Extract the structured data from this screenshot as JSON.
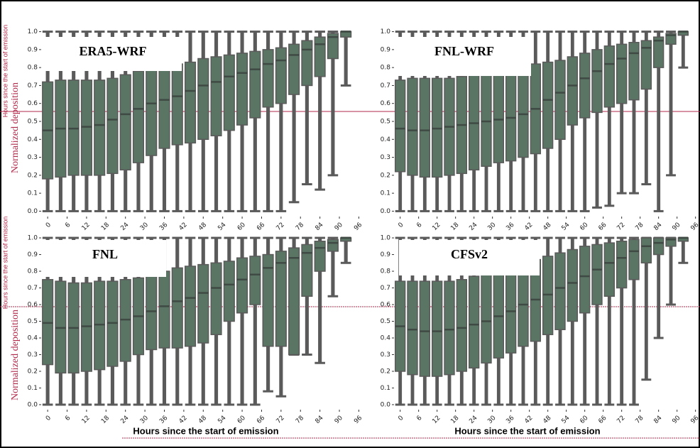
{
  "x_label": "Hours since the start of emission",
  "y_label": "Normalized deposition",
  "chart_data": [
    {
      "type": "box",
      "title": "ERA5-WRF",
      "color": "#5b7565",
      "whisker_color": "#5a5a5a",
      "x": [
        0,
        4,
        8,
        12,
        16,
        20,
        24,
        28,
        32,
        36,
        40,
        44,
        48,
        52,
        56,
        60,
        64,
        68,
        72,
        76,
        80,
        84,
        88,
        92
      ],
      "whisker_high": [
        1,
        1,
        1,
        1,
        1,
        1,
        1,
        1,
        1,
        1,
        1,
        1,
        1,
        1,
        1,
        1,
        1,
        1,
        1,
        1,
        1,
        1,
        1,
        1
      ],
      "q3": [
        0.72,
        0.73,
        0.73,
        0.73,
        0.73,
        0.74,
        0.76,
        0.78,
        0.8,
        0.81,
        0.82,
        0.83,
        0.85,
        0.86,
        0.87,
        0.88,
        0.89,
        0.9,
        0.91,
        0.93,
        0.95,
        0.97,
        0.99,
        1.0
      ],
      "median": [
        0.45,
        0.46,
        0.46,
        0.47,
        0.48,
        0.51,
        0.54,
        0.57,
        0.6,
        0.62,
        0.64,
        0.67,
        0.7,
        0.72,
        0.75,
        0.77,
        0.79,
        0.82,
        0.84,
        0.87,
        0.9,
        0.93,
        0.97,
        1.0
      ],
      "q1": [
        0.18,
        0.19,
        0.2,
        0.2,
        0.2,
        0.21,
        0.23,
        0.27,
        0.31,
        0.35,
        0.37,
        0.38,
        0.4,
        0.42,
        0.45,
        0.48,
        0.52,
        0.58,
        0.6,
        0.65,
        0.7,
        0.75,
        0.85,
        0.97
      ],
      "whisker_low": [
        0,
        0,
        0,
        0,
        0,
        0,
        0,
        0,
        0,
        0,
        0,
        0,
        0,
        0,
        0,
        0,
        0,
        0,
        0,
        0.05,
        0.15,
        0.12,
        0.2,
        0.7
      ],
      "xlim": [
        -2,
        97
      ],
      "ylim": [
        -0.03,
        1.03
      ],
      "xticks": [
        0,
        6,
        12,
        18,
        24,
        30,
        36,
        42,
        48,
        54,
        60,
        66,
        72,
        78,
        84,
        90,
        96
      ],
      "yticks": [
        {
          "value": 0,
          "label": "0.0"
        },
        0.1,
        0.2,
        0.3,
        0.4,
        0.5,
        0.6,
        0.7,
        0.8,
        0.9,
        {
          "value": 1,
          "label": "1.0"
        }
      ]
    },
    {
      "type": "box",
      "title": "FNL-WRF",
      "color": "#5b7565",
      "whisker_color": "#5a5a5a",
      "x": [
        0,
        4,
        8,
        12,
        16,
        20,
        24,
        28,
        32,
        36,
        40,
        44,
        48,
        52,
        56,
        60,
        64,
        68,
        72,
        76,
        80,
        84,
        88,
        92
      ],
      "whisker_high": [
        1,
        1,
        1,
        1,
        1,
        1,
        1,
        1,
        1,
        1,
        1,
        1,
        1,
        1,
        1,
        1,
        1,
        1,
        1,
        1,
        1,
        1,
        1,
        1
      ],
      "q3": [
        0.73,
        0.74,
        0.74,
        0.74,
        0.74,
        0.75,
        0.76,
        0.78,
        0.79,
        0.8,
        0.81,
        0.82,
        0.83,
        0.84,
        0.86,
        0.88,
        0.9,
        0.92,
        0.93,
        0.94,
        0.95,
        0.97,
        0.99,
        1.0
      ],
      "median": [
        0.46,
        0.45,
        0.45,
        0.46,
        0.47,
        0.48,
        0.49,
        0.5,
        0.51,
        0.52,
        0.54,
        0.57,
        0.62,
        0.66,
        0.7,
        0.74,
        0.78,
        0.82,
        0.85,
        0.88,
        0.91,
        0.95,
        0.98,
        1.0
      ],
      "q1": [
        0.22,
        0.2,
        0.19,
        0.19,
        0.2,
        0.21,
        0.23,
        0.25,
        0.27,
        0.28,
        0.3,
        0.32,
        0.35,
        0.4,
        0.48,
        0.52,
        0.55,
        0.58,
        0.6,
        0.62,
        0.68,
        0.8,
        0.93,
        0.98
      ],
      "whisker_low": [
        0,
        0,
        0,
        0,
        0,
        0,
        0,
        0,
        0,
        0,
        0,
        0,
        0,
        0,
        0,
        0,
        0.02,
        0.03,
        0.1,
        0.1,
        0.15,
        0,
        0.2,
        0.8
      ],
      "xlim": [
        -2,
        97
      ],
      "ylim": [
        -0.03,
        1.03
      ],
      "xticks": [
        0,
        6,
        12,
        18,
        24,
        30,
        36,
        42,
        48,
        54,
        60,
        66,
        72,
        78,
        84,
        90,
        96
      ],
      "yticks": [
        {
          "value": 0,
          "label": "0.0"
        },
        0.1,
        0.2,
        0.3,
        0.4,
        0.5,
        0.6,
        0.7,
        0.8,
        0.9,
        {
          "value": 1,
          "label": "1.0"
        }
      ]
    },
    {
      "type": "box",
      "title": "FNL",
      "color": "#5b7565",
      "whisker_color": "#5a5a5a",
      "x": [
        0,
        4,
        8,
        12,
        16,
        20,
        24,
        28,
        32,
        36,
        40,
        44,
        48,
        52,
        56,
        60,
        64,
        68,
        72,
        76,
        80,
        84,
        88,
        92
      ],
      "whisker_high": [
        1,
        1,
        1,
        1,
        1,
        1,
        1,
        1,
        1,
        1,
        1,
        1,
        1,
        1,
        1,
        1,
        1,
        1,
        1,
        1,
        1,
        1,
        1,
        1
      ],
      "q3": [
        0.75,
        0.74,
        0.73,
        0.73,
        0.74,
        0.74,
        0.75,
        0.76,
        0.78,
        0.8,
        0.82,
        0.83,
        0.84,
        0.85,
        0.86,
        0.88,
        0.89,
        0.9,
        0.92,
        0.94,
        0.96,
        0.98,
        0.99,
        1.0
      ],
      "median": [
        0.49,
        0.46,
        0.46,
        0.47,
        0.48,
        0.49,
        0.51,
        0.53,
        0.56,
        0.59,
        0.62,
        0.64,
        0.67,
        0.7,
        0.72,
        0.75,
        0.78,
        0.82,
        0.85,
        0.88,
        0.91,
        0.94,
        0.97,
        1.0
      ],
      "q1": [
        0.24,
        0.19,
        0.19,
        0.2,
        0.21,
        0.23,
        0.26,
        0.3,
        0.33,
        0.34,
        0.34,
        0.35,
        0.37,
        0.42,
        0.5,
        0.55,
        0.6,
        0.35,
        0.35,
        0.3,
        0.65,
        0.8,
        0.92,
        0.98
      ],
      "whisker_low": [
        0,
        0,
        0,
        0,
        0,
        0,
        0,
        0,
        0,
        0,
        0,
        0,
        0,
        0,
        0,
        0,
        0,
        0.08,
        0.05,
        0.3,
        0.3,
        0.25,
        0.65,
        0.85
      ],
      "xlim": [
        -2,
        97
      ],
      "ylim": [
        -0.03,
        1.03
      ],
      "xticks": [
        0,
        6,
        12,
        18,
        24,
        30,
        36,
        42,
        48,
        54,
        60,
        66,
        72,
        78,
        84,
        90,
        96
      ],
      "yticks": [
        {
          "value": 0,
          "label": "0.0"
        },
        0.1,
        0.2,
        0.3,
        0.4,
        0.5,
        0.6,
        0.7,
        0.8,
        0.9,
        {
          "value": 1,
          "label": "1.0"
        }
      ]
    },
    {
      "type": "box",
      "title": "CFSv2",
      "color": "#5b7565",
      "whisker_color": "#5a5a5a",
      "x": [
        0,
        4,
        8,
        12,
        16,
        20,
        24,
        28,
        32,
        36,
        40,
        44,
        48,
        52,
        56,
        60,
        64,
        68,
        72,
        76,
        80,
        84,
        88,
        92
      ],
      "whisker_high": [
        1,
        1,
        1,
        1,
        1,
        1,
        1,
        1,
        1,
        1,
        1,
        1,
        1,
        1,
        1,
        1,
        1,
        1,
        1,
        1,
        1,
        1,
        1,
        1
      ],
      "q3": [
        0.74,
        0.74,
        0.74,
        0.74,
        0.74,
        0.75,
        0.77,
        0.79,
        0.81,
        0.83,
        0.85,
        0.87,
        0.89,
        0.91,
        0.93,
        0.95,
        0.96,
        0.97,
        0.98,
        0.99,
        1.0,
        1.0,
        1.0,
        1.0
      ],
      "median": [
        0.47,
        0.45,
        0.44,
        0.44,
        0.45,
        0.46,
        0.48,
        0.5,
        0.53,
        0.56,
        0.6,
        0.63,
        0.66,
        0.7,
        0.73,
        0.77,
        0.81,
        0.85,
        0.88,
        0.92,
        0.95,
        0.97,
        0.99,
        1.0
      ],
      "q1": [
        0.2,
        0.18,
        0.17,
        0.17,
        0.18,
        0.2,
        0.22,
        0.25,
        0.28,
        0.31,
        0.35,
        0.38,
        0.42,
        0.45,
        0.5,
        0.55,
        0.6,
        0.65,
        0.7,
        0.75,
        0.85,
        0.9,
        0.95,
        0.98
      ],
      "whisker_low": [
        0,
        0,
        0,
        0,
        0,
        0,
        0,
        0,
        0,
        0,
        0,
        0,
        0,
        0,
        0,
        0,
        0,
        0,
        0,
        0,
        0.15,
        0.4,
        0.6,
        0.85
      ],
      "xlim": [
        -2,
        97
      ],
      "ylim": [
        -0.03,
        1.03
      ],
      "xticks": [
        0,
        6,
        12,
        18,
        24,
        30,
        36,
        42,
        48,
        54,
        60,
        66,
        72,
        78,
        84,
        90,
        96
      ],
      "yticks": [
        {
          "value": 0,
          "label": "0.0"
        },
        0.1,
        0.2,
        0.3,
        0.4,
        0.5,
        0.6,
        0.7,
        0.8,
        0.9,
        {
          "value": 1,
          "label": "1.0"
        }
      ]
    }
  ]
}
